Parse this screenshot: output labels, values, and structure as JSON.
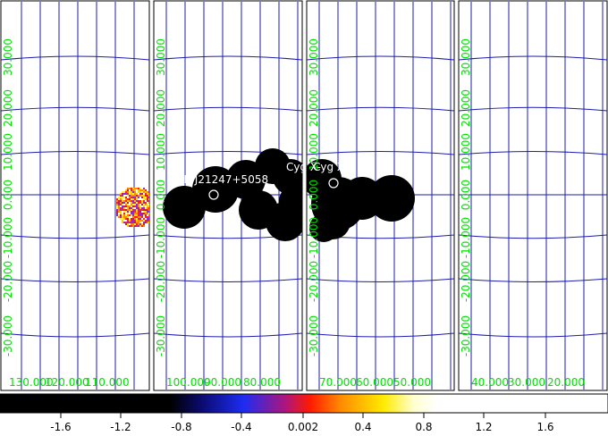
{
  "panels": [
    {
      "id": "panel-1",
      "lon_labels": [
        "130.000",
        "120.000",
        "110.000"
      ],
      "lat_labels": [
        "30.000",
        "20.000",
        "10.000",
        "0.000",
        "-10.000",
        "-20.000",
        "-30.000"
      ]
    },
    {
      "id": "panel-2",
      "lon_labels": [
        "100.000",
        "90.000",
        "80.000"
      ],
      "lat_labels": [
        "30.000",
        "20.000",
        "10.000",
        "0.000",
        "-10.000",
        "-20.000",
        "-30.000"
      ]
    },
    {
      "id": "panel-3",
      "lon_labels": [
        "70.000",
        "60.000",
        "50.000"
      ],
      "lat_labels": [
        "30.000",
        "20.000",
        "10.000",
        "0.000",
        "-10.000",
        "-20.000",
        "-30.000"
      ]
    },
    {
      "id": "panel-4",
      "lon_labels": [
        "40.000",
        "30.000",
        "20.000"
      ],
      "lat_labels": [
        "30.000",
        "20.000",
        "10.000",
        "0.000",
        "-10.000",
        "-20.000",
        "-30.000"
      ]
    }
  ],
  "sources": [
    {
      "label": "4R J21247+5058"
    },
    {
      "label": "Cyg X-"
    },
    {
      "label": "Cyg X-"
    }
  ],
  "colorbar": {
    "tick_labels": [
      "-1.6",
      "-1.2",
      "-0.8",
      "-0.4",
      "0.002",
      "0.4",
      "0.8",
      "1.2",
      "1.6"
    ],
    "colors": {
      "stops": [
        "#000000",
        "#000000",
        "#0a0a6e",
        "#1d2cf2",
        "#b0157a",
        "#ff1a00",
        "#ff8a00",
        "#ffea00",
        "#ffffd0",
        "#ffffff",
        "#ffffff"
      ]
    }
  },
  "colors": {
    "grid": "#1c1cae",
    "labels": "#00e000",
    "panel_border": "#000000"
  }
}
